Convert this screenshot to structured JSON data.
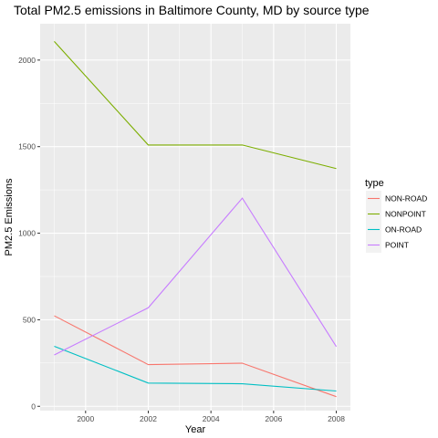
{
  "chart_data": {
    "type": "line",
    "title": "Total PM2.5 emissions in Baltimore County, MD by source type",
    "xlabel": "Year",
    "ylabel": "PM2.5 Emissions",
    "x": [
      1999,
      2002,
      2005,
      2008
    ],
    "xlim": [
      1998.55,
      2008.45
    ],
    "ylim": [
      -25,
      2210
    ],
    "x_ticks": [
      2000,
      2002,
      2004,
      2006,
      2008
    ],
    "y_ticks": [
      0,
      500,
      1000,
      1500,
      2000
    ],
    "grid": true,
    "legend": {
      "title": "type",
      "position": "right"
    },
    "series": [
      {
        "name": "NON-ROAD",
        "color": "#F8766D",
        "values": [
          522.9,
          240.8,
          248.9,
          55.8
        ]
      },
      {
        "name": "NONPOINT",
        "color": "#7CAE00",
        "values": [
          2107.6,
          1509.5,
          1509.5,
          1373.2
        ]
      },
      {
        "name": "ON-ROAD",
        "color": "#00BFC4",
        "values": [
          346.8,
          134.3,
          130.4,
          88.3
        ]
      },
      {
        "name": "POINT",
        "color": "#C77CFF",
        "values": [
          296.8,
          569.3,
          1202.5,
          344.98
        ]
      }
    ]
  }
}
